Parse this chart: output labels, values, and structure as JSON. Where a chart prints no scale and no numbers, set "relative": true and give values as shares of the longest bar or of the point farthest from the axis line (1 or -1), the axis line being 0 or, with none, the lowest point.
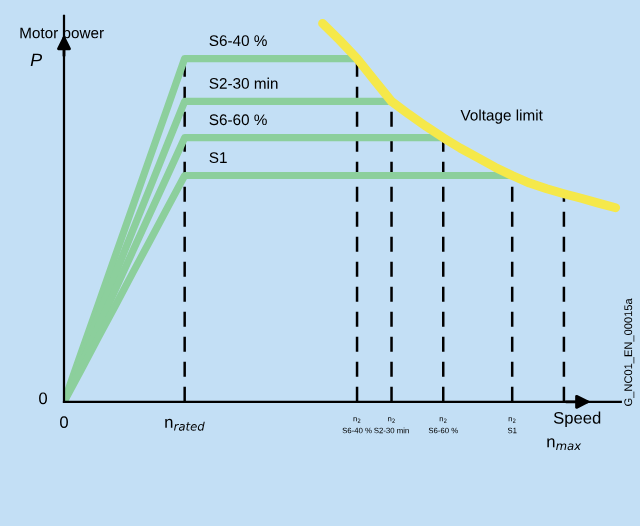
{
  "chart_data": {
    "type": "line",
    "relative": true,
    "ylabel": "P",
    "xlabel": "Speed",
    "annotations": [
      "Motor power",
      "0",
      "G_NC01_EN_00015a"
    ],
    "categories": [
      "0",
      null,
      null,
      null,
      null,
      null,
      null,
      "n$_{rated}$",
      null,
      null,
      null,
      null,
      null,
      null,
      null,
      null,
      null,
      "n$_{2}$\nS6-40 %",
      null,
      "n$_{2}$\nS2-30 min",
      null,
      null,
      "n$_{2}$\nS6-60 %",
      null,
      null,
      null,
      "n$_{2}$\nS1",
      null,
      null,
      "n$_{max}$",
      null,
      null,
      null
    ],
    "ref_lines": [
      {
        "axis": "x",
        "value": "n$_{rated}$",
        "line_style": "dashed",
        "color": "#000000"
      },
      {
        "axis": "x",
        "value": "n$_{2}$\nS6-40 %",
        "line_style": "dashed",
        "color": "#000000"
      },
      {
        "axis": "x",
        "value": "n$_{2}$\nS2-30 min",
        "line_style": "dashed",
        "color": "#000000"
      },
      {
        "axis": "x",
        "value": "n$_{2}$\nS6-60 %",
        "line_style": "dashed",
        "color": "#000000"
      },
      {
        "axis": "x",
        "value": "n$_{2}$\nS1",
        "line_style": "dashed",
        "color": "#000000"
      },
      {
        "axis": "x",
        "value": "n$_{max}$",
        "line_style": "dashed",
        "color": "#000000"
      }
    ],
    "series": [
      {
        "name": "S6-40 %",
        "color": "#8ccf9c",
        "values": [
          0,
          0.13,
          0.259,
          0.389,
          0.518,
          0.648,
          0.777,
          0.907,
          0.907,
          0.907,
          0.907,
          0.907,
          0.907,
          0.907,
          0.907,
          0.907,
          0.907,
          0.907,
          null,
          null,
          null,
          null,
          null,
          null,
          null,
          null,
          null,
          null,
          null,
          null,
          null,
          null,
          null
        ]
      },
      {
        "name": "S2-30 min",
        "color": "#8ccf9c",
        "values": [
          0,
          0.113,
          0.227,
          0.34,
          0.454,
          0.567,
          0.681,
          0.794,
          0.794,
          0.794,
          0.794,
          0.794,
          0.794,
          0.794,
          0.794,
          0.794,
          0.794,
          0.794,
          0.794,
          0.794,
          null,
          null,
          null,
          null,
          null,
          null,
          null,
          null,
          null,
          null,
          null,
          null,
          null
        ]
      },
      {
        "name": "S6-60 %",
        "color": "#8ccf9c",
        "values": [
          0,
          0.1,
          0.199,
          0.299,
          0.399,
          0.499,
          0.598,
          0.698,
          0.698,
          0.698,
          0.698,
          0.698,
          0.698,
          0.698,
          0.698,
          0.698,
          0.698,
          0.698,
          0.698,
          0.698,
          0.698,
          0.698,
          0.698,
          null,
          null,
          null,
          null,
          null,
          null,
          null,
          null,
          null,
          null
        ]
      },
      {
        "name": "S1",
        "color": "#8ccf9c",
        "values": [
          0,
          0.085,
          0.171,
          0.256,
          0.342,
          0.427,
          0.513,
          0.598,
          0.598,
          0.598,
          0.598,
          0.598,
          0.598,
          0.598,
          0.598,
          0.598,
          0.598,
          0.598,
          0.598,
          0.598,
          0.598,
          0.598,
          0.598,
          0.598,
          0.598,
          0.598,
          0.598,
          null,
          null,
          null,
          null,
          null,
          null
        ]
      },
      {
        "name": "Voltage limit",
        "color": "#f5e84a",
        "values": [
          null,
          null,
          null,
          null,
          null,
          null,
          null,
          null,
          null,
          null,
          null,
          null,
          null,
          null,
          null,
          1,
          0.955,
          0.907,
          0.85,
          0.794,
          0.76,
          0.728,
          0.698,
          0.67,
          0.645,
          0.62,
          0.598,
          0.578,
          0.563,
          0.55,
          0.538,
          0.525,
          0.513
        ]
      }
    ],
    "marker": "none",
    "line_style": "solid"
  }
}
